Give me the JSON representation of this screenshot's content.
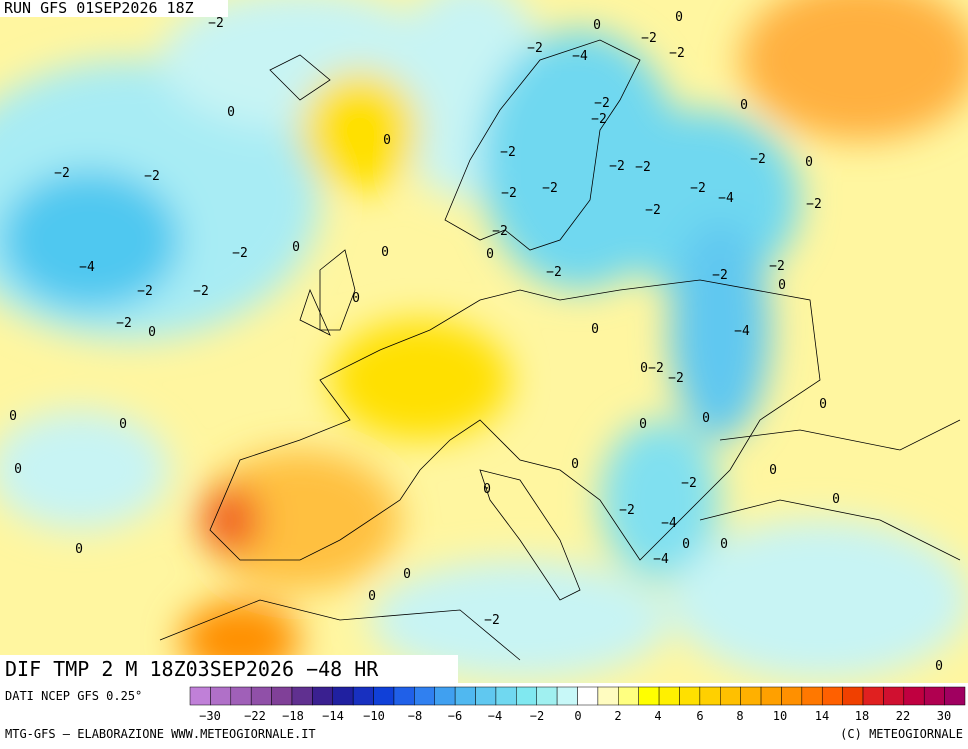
{
  "header": {
    "run": "RUN GFS 01SEP2026 18Z"
  },
  "map": {
    "title": "DIF TMP 2 M 18Z03SEP2026 −48 HR",
    "contour_labels": [
      "−2",
      "0",
      "0",
      "−2",
      "−2",
      "−4",
      "−2",
      "0",
      "−2",
      "−2",
      "0",
      "0",
      "−2",
      "−2",
      "−2",
      "−2",
      "−2",
      "−2",
      "0",
      "−2",
      "−2",
      "−2",
      "−4",
      "−2",
      "−2",
      "−2",
      "−2",
      "0",
      "0",
      "0",
      "−4",
      "−2",
      "−2",
      "−2",
      "0",
      "−2",
      "−2",
      "0",
      "−2",
      "0",
      "0",
      "−4",
      "0",
      "−2",
      "−2",
      "0",
      "0",
      "0",
      "0",
      "0",
      "0",
      "0",
      "0",
      "−2",
      "0",
      "0",
      "−2",
      "−4",
      "0",
      "0",
      "0",
      "−4",
      "0",
      "0",
      "−2",
      "0"
    ]
  },
  "footer": {
    "source": "DATI NCEP GFS 0.25°",
    "credit_left": "MTG-GFS — ELABORAZIONE WWW.METEOGIORNALE.IT",
    "credit_right": "(C) METEOGIORNALE"
  },
  "colorbar": {
    "colors": [
      "#c080d8",
      "#b070c8",
      "#a060b8",
      "#9050a8",
      "#804098",
      "#603090",
      "#3a2090",
      "#2020a0",
      "#1830c0",
      "#1040d8",
      "#2060e8",
      "#3080f0",
      "#40a0f0",
      "#50b8f0",
      "#60c8f0",
      "#70d8f0",
      "#80e8f0",
      "#a0f0f0",
      "#c8f8f8",
      "#ffffff",
      "#fffcc0",
      "#ffff80",
      "#ffff00",
      "#fff000",
      "#ffe000",
      "#ffd000",
      "#ffc000",
      "#ffb000",
      "#ffa000",
      "#ff9000",
      "#ff7800",
      "#ff6000",
      "#f04000",
      "#e02020",
      "#d01030",
      "#c00040",
      "#b00050",
      "#a00060"
    ],
    "labels": [
      "−30",
      "−22",
      "−18",
      "−14",
      "−10",
      "−8",
      "−6",
      "−4",
      "−2",
      "0",
      "2",
      "4",
      "6",
      "8",
      "10",
      "14",
      "18",
      "22",
      "30"
    ]
  }
}
